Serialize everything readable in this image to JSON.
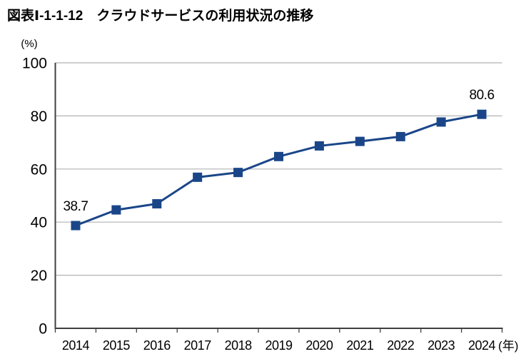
{
  "figure": {
    "title": "図表Ⅰ-1-1-12　クラウドサービスの利用状況の推移"
  },
  "chart_data": {
    "type": "line",
    "title": "図表Ⅰ-1-1-12　クラウドサービスの利用状況の推移",
    "unit_label": "(%)",
    "x_suffix_last": "(年)",
    "categories": [
      "2014",
      "2015",
      "2016",
      "2017",
      "2018",
      "2019",
      "2020",
      "2021",
      "2022",
      "2023",
      "2024"
    ],
    "values": [
      38.7,
      44.6,
      46.9,
      56.9,
      58.7,
      64.7,
      68.7,
      70.4,
      72.2,
      77.7,
      80.6
    ],
    "point_labels": [
      {
        "category": "2014",
        "value_text": "38.7"
      },
      {
        "category": "2024",
        "value_text": "80.6"
      }
    ],
    "ylim": [
      0,
      100
    ],
    "yticks": [
      0,
      20,
      40,
      60,
      80,
      100
    ],
    "grid": "horizontal-only",
    "legend": "none",
    "marker": "square",
    "colors": {
      "line": "#1a4689",
      "marker": "#1a4689",
      "grid": "#b2b2b2",
      "axis": "#3f3f3f",
      "text": "#000000",
      "background": "#ffffff"
    }
  }
}
